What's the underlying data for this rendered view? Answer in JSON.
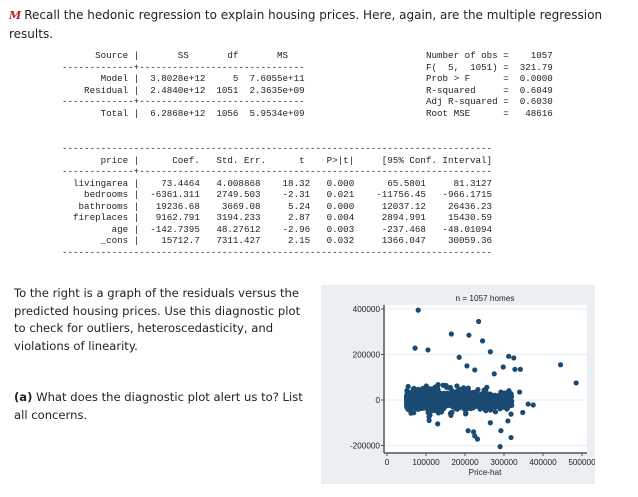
{
  "intro": {
    "marker": "M",
    "text": "Recall the hedonic regression to explain housing prices. Here, again, are the multiple regression results."
  },
  "anova": {
    "header": "      Source |       SS       df       MS",
    "sep1": "-------------+------------------------------",
    "rows": [
      "       Model |  3.8028e+12     5  7.6055e+11",
      "    Residual |  2.4840e+12  1051  2.3635e+09"
    ],
    "sep2": "-------------+------------------------------",
    "total": "       Total |  6.2868e+12  1056  5.9534e+09",
    "table": [
      {
        "source": "Model",
        "SS": "3.8028e+12",
        "df": "5",
        "MS": "7.6055e+11"
      },
      {
        "source": "Residual",
        "SS": "2.4840e+12",
        "df": "1051",
        "MS": "2.3635e+09"
      },
      {
        "source": "Total",
        "SS": "6.2868e+12",
        "df": "1056",
        "MS": "5.9534e+09"
      }
    ]
  },
  "fit_stats": {
    "lines": [
      "Number of obs =    1057",
      "F(  5,  1051) =  321.79",
      "Prob > F      =  0.0000",
      "R-squared     =  0.6049",
      "Adj R-squared =  0.6030",
      "Root MSE      =   48616"
    ],
    "values": {
      "n_obs": "1057",
      "F": "321.79",
      "F_df": "5, 1051",
      "prob_F": "0.0000",
      "r_squared": "0.6049",
      "adj_r_squared": "0.6030",
      "root_mse": "48616"
    }
  },
  "coef_table": {
    "sep_top": "------------------------------------------------------------------------------",
    "header": "       price |      Coef.   Std. Err.      t    P>|t|     [95% Conf. Interval]",
    "sep_mid": "-------------+----------------------------------------------------------------",
    "rows": [
      "  livingarea |    73.4464   4.008868    18.32   0.000      65.5801     81.3127",
      "    bedrooms |  -6361.311   2749.503    -2.31   0.021    -11756.45   -966.1715",
      "   bathrooms |   19236.68    3669.08     5.24   0.000     12037.12    26436.23",
      "  fireplaces |   9162.791   3194.233     2.87   0.004     2894.991    15430.59",
      "         age |  -142.7395   48.27612    -2.96   0.003     -237.468   -48.01094",
      "       _cons |    15712.7   7311.427     2.15   0.032     1366.047    30059.36"
    ],
    "sep_bottom": "------------------------------------------------------------------------------",
    "columns": [
      "price",
      "Coef.",
      "Std. Err.",
      "t",
      "P>|t|",
      "[95% Conf.",
      "Interval]"
    ],
    "data": [
      [
        "livingarea",
        "73.4464",
        "4.008868",
        "18.32",
        "0.000",
        "65.5801",
        "81.3127"
      ],
      [
        "bedrooms",
        "-6361.311",
        "2749.503",
        "-2.31",
        "0.021",
        "-11756.45",
        "-966.1715"
      ],
      [
        "bathrooms",
        "19236.68",
        "3669.08",
        "5.24",
        "0.000",
        "12037.12",
        "26436.23"
      ],
      [
        "fireplaces",
        "9162.791",
        "3194.233",
        "2.87",
        "0.004",
        "2894.991",
        "15430.59"
      ],
      [
        "age",
        "-142.7395",
        "48.27612",
        "-2.96",
        "0.003",
        "-237.468",
        "-48.01094"
      ],
      [
        "_cons",
        "15712.7",
        "7311.427",
        "2.15",
        "0.032",
        "1366.047",
        "30059.36"
      ]
    ]
  },
  "question": {
    "prompt": "To the right is a graph of the residuals versus the predicted housing prices. Use this diagnostic plot to check for outliers, heteroscedasticity, and violations of linearity.",
    "part_label": "(a)",
    "part_text": "What does the diagnostic plot alert us to? List all concerns."
  },
  "chart_data": {
    "type": "scatter",
    "title": "n = 1057 homes",
    "xlabel": "Price-hat",
    "ylabel": "",
    "xlim": [
      0,
      510000
    ],
    "ylim": [
      -210000,
      410000
    ],
    "x_ticks": [
      "0",
      "100000",
      "200000",
      "300000",
      "400000",
      "500000"
    ],
    "y_ticks": [
      "400000",
      "200000",
      "0",
      "-200000"
    ],
    "grid": true,
    "marker_color": "#1a4a72",
    "background": "#e9eff2",
    "outliers": [
      [
        80000,
        395000
      ],
      [
        235000,
        345000
      ],
      [
        165000,
        290000
      ],
      [
        210000,
        285000
      ],
      [
        245000,
        260000
      ],
      [
        72000,
        228000
      ],
      [
        105000,
        220000
      ],
      [
        265000,
        212000
      ],
      [
        185000,
        188000
      ],
      [
        312000,
        192000
      ],
      [
        325000,
        185000
      ],
      [
        445000,
        155000
      ],
      [
        485000,
        75000
      ],
      [
        205000,
        150000
      ],
      [
        225000,
        132000
      ],
      [
        298000,
        145000
      ],
      [
        342000,
        135000
      ],
      [
        328000,
        135000
      ],
      [
        275000,
        115000
      ],
      [
        340000,
        35000
      ],
      [
        362000,
        -18000
      ],
      [
        375000,
        -22000
      ],
      [
        348000,
        -55000
      ],
      [
        318000,
        -62000
      ],
      [
        310000,
        -92000
      ],
      [
        265000,
        -100000
      ],
      [
        208000,
        -135000
      ],
      [
        222000,
        -140000
      ],
      [
        225000,
        -158000
      ],
      [
        232000,
        -172000
      ],
      [
        292000,
        -135000
      ],
      [
        318000,
        -165000
      ],
      [
        290000,
        -205000
      ],
      [
        130000,
        -105000
      ],
      [
        108000,
        -90000
      ]
    ],
    "cluster": {
      "x_range": [
        50000,
        320000
      ],
      "y_range": [
        -100000,
        120000
      ],
      "center": [
        160000,
        0
      ],
      "count": 1022
    }
  }
}
